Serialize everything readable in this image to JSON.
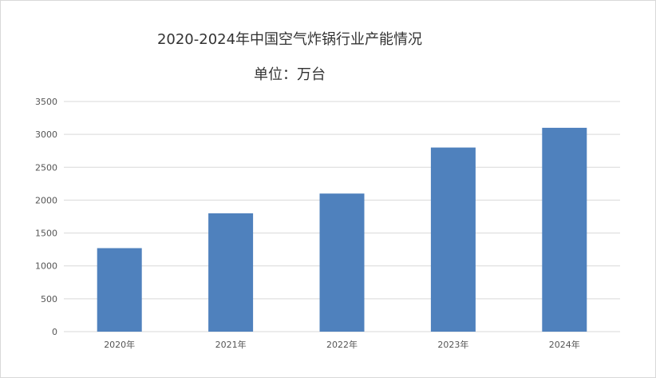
{
  "chart_data": {
    "type": "bar",
    "title": "2020-2024年中国空气炸锅行业产能情况",
    "subtitle": "单位：万台",
    "categories": [
      "2020年",
      "2021年",
      "2022年",
      "2023年",
      "2024年"
    ],
    "values": [
      1270,
      1800,
      2100,
      2800,
      3100
    ],
    "ylim": [
      0,
      3500
    ],
    "yticks": [
      0,
      500,
      1000,
      1500,
      2000,
      2500,
      3000,
      3500
    ],
    "grid": true,
    "bar_color": "#4f81bd",
    "grid_color": "#d9d9d9"
  }
}
